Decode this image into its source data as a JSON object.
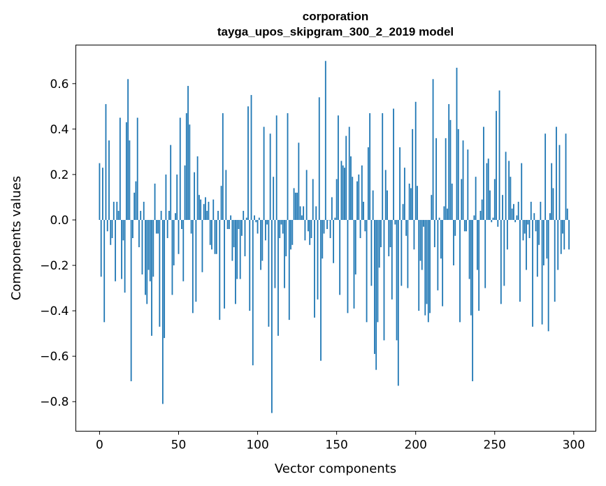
{
  "chart_data": {
    "type": "bar",
    "title": "corporation",
    "subtitle": "tayga_upos_skipgram_300_2_2019 model",
    "xlabel": "Vector components",
    "ylabel": "Components values",
    "xlim": [
      -15,
      314
    ],
    "ylim": [
      -0.93,
      0.77
    ],
    "xticks": [
      0,
      50,
      100,
      150,
      200,
      250,
      300
    ],
    "xtick_labels": [
      "0",
      "50",
      "100",
      "150",
      "200",
      "250",
      "300"
    ],
    "yticks": [
      0.6,
      0.4,
      0.2,
      0.0,
      -0.2,
      -0.4,
      -0.6,
      -0.8
    ],
    "ytick_labels": [
      "0.6",
      "0.4",
      "0.2",
      "0.0",
      "−0.2",
      "−0.4",
      "−0.6",
      "−0.8"
    ],
    "bar_color": "#1f77b4",
    "values": [
      0.25,
      -0.25,
      0.23,
      -0.45,
      0.51,
      -0.05,
      0.35,
      -0.11,
      -0.08,
      0.08,
      -0.27,
      0.08,
      0.04,
      0.45,
      -0.26,
      -0.09,
      -0.32,
      0.43,
      0.62,
      0.35,
      -0.71,
      -0.08,
      0.12,
      0.17,
      0.45,
      -0.12,
      0.04,
      -0.24,
      0.08,
      -0.33,
      -0.37,
      -0.22,
      -0.27,
      -0.51,
      -0.25,
      0.16,
      -0.06,
      -0.06,
      -0.47,
      0.04,
      -0.81,
      -0.52,
      0.2,
      -0.08,
      0.04,
      0.33,
      -0.33,
      -0.2,
      0.03,
      0.2,
      -0.15,
      0.45,
      -0.04,
      -0.27,
      0.24,
      0.47,
      0.59,
      0.42,
      -0.06,
      -0.41,
      0.21,
      -0.36,
      0.28,
      0.11,
      0.09,
      -0.23,
      0.07,
      0.1,
      0.04,
      0.08,
      -0.11,
      -0.13,
      0.09,
      -0.15,
      -0.15,
      0.04,
      -0.44,
      0.15,
      0.47,
      -0.39,
      0.22,
      -0.04,
      -0.04,
      0.02,
      -0.18,
      -0.12,
      -0.37,
      -0.26,
      -0.04,
      -0.26,
      -0.07,
      0.04,
      -0.16,
      0.01,
      0.5,
      -0.4,
      0.55,
      -0.64,
      0.02,
      -0.01,
      -0.06,
      0.01,
      -0.22,
      -0.18,
      0.41,
      -0.09,
      -0.02,
      -0.47,
      0.38,
      -0.85,
      0.19,
      -0.3,
      0.46,
      -0.51,
      -0.08,
      -0.02,
      -0.06,
      -0.3,
      -0.16,
      0.47,
      -0.44,
      -0.13,
      -0.11,
      0.14,
      0.12,
      0.12,
      0.34,
      0.06,
      0.02,
      0.06,
      -0.09,
      0.22,
      -0.05,
      -0.11,
      -0.08,
      0.18,
      -0.43,
      0.06,
      -0.35,
      0.54,
      -0.62,
      -0.17,
      -0.06,
      0.7,
      -0.04,
      0.0,
      -0.08,
      0.1,
      -0.19,
      0.01,
      0.18,
      0.46,
      -0.33,
      0.26,
      0.24,
      0.23,
      0.37,
      -0.41,
      0.41,
      0.28,
      0.19,
      -0.39,
      -0.24,
      0.17,
      0.2,
      -0.08,
      0.24,
      0.08,
      -0.05,
      -0.45,
      0.32,
      0.47,
      -0.29,
      0.13,
      -0.59,
      -0.66,
      -0.45,
      -0.21,
      -0.12,
      0.47,
      -0.53,
      0.22,
      0.13,
      -0.16,
      -0.12,
      -0.35,
      0.49,
      -0.02,
      -0.53,
      -0.73,
      0.32,
      -0.29,
      0.07,
      0.23,
      -0.07,
      -0.3,
      0.16,
      0.14,
      0.4,
      -0.13,
      0.52,
      0.15,
      -0.4,
      -0.18,
      -0.22,
      -0.03,
      -0.42,
      -0.37,
      -0.45,
      -0.41,
      0.11,
      0.62,
      -0.12,
      0.36,
      -0.31,
      0.01,
      -0.17,
      -0.38,
      0.06,
      0.36,
      0.05,
      0.51,
      0.44,
      0.16,
      -0.2,
      -0.07,
      0.67,
      0.4,
      -0.45,
      0.18,
      0.35,
      -0.05,
      -0.05,
      0.31,
      -0.26,
      -0.42,
      -0.71,
      0.02,
      0.19,
      -0.22,
      -0.4,
      0.04,
      0.09,
      0.41,
      -0.3,
      0.25,
      0.27,
      0.13,
      -0.01,
      0.01,
      0.18,
      0.48,
      -0.03,
      0.57,
      -0.37,
      0.11,
      -0.29,
      0.3,
      -0.13,
      0.26,
      0.19,
      0.05,
      0.07,
      -0.01,
      0.02,
      0.08,
      -0.36,
      0.25,
      -0.09,
      -0.06,
      -0.22,
      -0.02,
      -0.08,
      0.08,
      -0.47,
      0.03,
      -0.05,
      -0.25,
      -0.11,
      0.08,
      -0.46,
      -0.2,
      0.38,
      -0.17,
      -0.49,
      0.03,
      0.25,
      0.14,
      -0.36,
      0.41,
      -0.22,
      0.33,
      -0.15,
      -0.06,
      -0.13,
      0.38,
      0.05,
      -0.13
    ]
  }
}
